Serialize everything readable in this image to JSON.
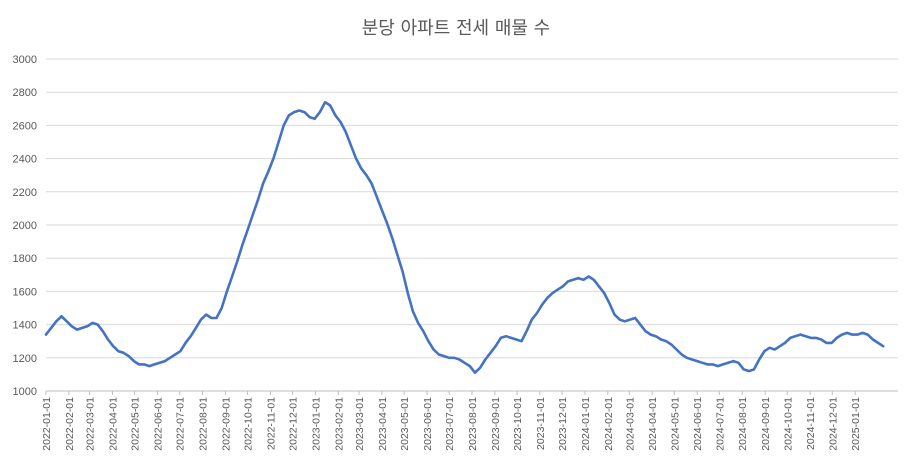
{
  "chart_data": {
    "type": "line",
    "title": "분당 아파트 전세 매물 수",
    "ylim": [
      1000,
      3000
    ],
    "yticks": [
      1000,
      1200,
      1400,
      1600,
      1800,
      2000,
      2200,
      2400,
      2600,
      2800,
      3000
    ],
    "xlim": [
      "2022-01-01",
      "2025-02-28"
    ],
    "grid": "horizontal",
    "legend": "none",
    "color": "#4472C4",
    "xtick_labels": [
      "2022-01-01",
      "2022-02-01",
      "2022-03-01",
      "2022-04-01",
      "2022-05-01",
      "2022-06-01",
      "2022-07-01",
      "2022-08-01",
      "2022-09-01",
      "2022-10-01",
      "2022-11-01",
      "2022-12-01",
      "2023-01-01",
      "2023-02-01",
      "2023-03-01",
      "2023-04-01",
      "2023-05-01",
      "2023-06-01",
      "2023-07-01",
      "2023-08-01",
      "2023-09-01",
      "2023-10-01",
      "2023-11-01",
      "2023-12-01",
      "2024-01-01",
      "2024-02-01",
      "2024-03-01",
      "2024-04-01",
      "2024-05-01",
      "2024-06-01",
      "2024-07-01",
      "2024-08-01",
      "2024-09-01",
      "2024-10-01",
      "2024-11-01",
      "2024-12-01",
      "2025-01-01"
    ],
    "series": [
      {
        "points": [
          [
            "2022-01-01",
            1340
          ],
          [
            "2022-01-08",
            1380
          ],
          [
            "2022-01-15",
            1420
          ],
          [
            "2022-01-22",
            1450
          ],
          [
            "2022-01-29",
            1420
          ],
          [
            "2022-02-05",
            1390
          ],
          [
            "2022-02-12",
            1370
          ],
          [
            "2022-02-19",
            1380
          ],
          [
            "2022-02-26",
            1390
          ],
          [
            "2022-03-05",
            1410
          ],
          [
            "2022-03-12",
            1400
          ],
          [
            "2022-03-19",
            1360
          ],
          [
            "2022-03-26",
            1310
          ],
          [
            "2022-04-02",
            1270
          ],
          [
            "2022-04-09",
            1240
          ],
          [
            "2022-04-16",
            1230
          ],
          [
            "2022-04-23",
            1210
          ],
          [
            "2022-04-30",
            1180
          ],
          [
            "2022-05-07",
            1160
          ],
          [
            "2022-05-14",
            1160
          ],
          [
            "2022-05-21",
            1150
          ],
          [
            "2022-05-28",
            1160
          ],
          [
            "2022-06-04",
            1170
          ],
          [
            "2022-06-11",
            1180
          ],
          [
            "2022-06-18",
            1200
          ],
          [
            "2022-06-25",
            1220
          ],
          [
            "2022-07-02",
            1240
          ],
          [
            "2022-07-09",
            1290
          ],
          [
            "2022-07-16",
            1330
          ],
          [
            "2022-07-23",
            1380
          ],
          [
            "2022-07-30",
            1430
          ],
          [
            "2022-08-06",
            1460
          ],
          [
            "2022-08-13",
            1440
          ],
          [
            "2022-08-20",
            1440
          ],
          [
            "2022-08-27",
            1500
          ],
          [
            "2022-09-03",
            1600
          ],
          [
            "2022-09-10",
            1690
          ],
          [
            "2022-09-17",
            1780
          ],
          [
            "2022-09-24",
            1880
          ],
          [
            "2022-10-01",
            1970
          ],
          [
            "2022-10-08",
            2060
          ],
          [
            "2022-10-15",
            2150
          ],
          [
            "2022-10-22",
            2250
          ],
          [
            "2022-10-29",
            2320
          ],
          [
            "2022-11-05",
            2400
          ],
          [
            "2022-11-12",
            2500
          ],
          [
            "2022-11-19",
            2600
          ],
          [
            "2022-11-26",
            2660
          ],
          [
            "2022-12-03",
            2680
          ],
          [
            "2022-12-10",
            2690
          ],
          [
            "2022-12-17",
            2680
          ],
          [
            "2022-12-24",
            2650
          ],
          [
            "2022-12-31",
            2640
          ],
          [
            "2023-01-07",
            2680
          ],
          [
            "2023-01-14",
            2740
          ],
          [
            "2023-01-21",
            2720
          ],
          [
            "2023-01-28",
            2660
          ],
          [
            "2023-02-04",
            2620
          ],
          [
            "2023-02-11",
            2560
          ],
          [
            "2023-02-18",
            2480
          ],
          [
            "2023-02-25",
            2400
          ],
          [
            "2023-03-04",
            2340
          ],
          [
            "2023-03-11",
            2300
          ],
          [
            "2023-03-18",
            2250
          ],
          [
            "2023-03-25",
            2170
          ],
          [
            "2023-04-01",
            2090
          ],
          [
            "2023-04-08",
            2010
          ],
          [
            "2023-04-15",
            1920
          ],
          [
            "2023-04-22",
            1820
          ],
          [
            "2023-04-29",
            1720
          ],
          [
            "2023-05-06",
            1590
          ],
          [
            "2023-05-13",
            1480
          ],
          [
            "2023-05-20",
            1410
          ],
          [
            "2023-05-27",
            1360
          ],
          [
            "2023-06-03",
            1300
          ],
          [
            "2023-06-10",
            1250
          ],
          [
            "2023-06-17",
            1220
          ],
          [
            "2023-06-24",
            1210
          ],
          [
            "2023-07-01",
            1200
          ],
          [
            "2023-07-08",
            1200
          ],
          [
            "2023-07-15",
            1190
          ],
          [
            "2023-07-22",
            1170
          ],
          [
            "2023-07-29",
            1150
          ],
          [
            "2023-08-05",
            1110
          ],
          [
            "2023-08-12",
            1140
          ],
          [
            "2023-08-19",
            1190
          ],
          [
            "2023-08-26",
            1230
          ],
          [
            "2023-09-02",
            1270
          ],
          [
            "2023-09-09",
            1320
          ],
          [
            "2023-09-16",
            1330
          ],
          [
            "2023-09-23",
            1320
          ],
          [
            "2023-09-30",
            1310
          ],
          [
            "2023-10-07",
            1300
          ],
          [
            "2023-10-14",
            1360
          ],
          [
            "2023-10-21",
            1430
          ],
          [
            "2023-10-28",
            1470
          ],
          [
            "2023-11-04",
            1520
          ],
          [
            "2023-11-11",
            1560
          ],
          [
            "2023-11-18",
            1590
          ],
          [
            "2023-11-25",
            1610
          ],
          [
            "2023-12-02",
            1630
          ],
          [
            "2023-12-09",
            1660
          ],
          [
            "2023-12-16",
            1670
          ],
          [
            "2023-12-23",
            1680
          ],
          [
            "2023-12-30",
            1670
          ],
          [
            "2024-01-06",
            1690
          ],
          [
            "2024-01-13",
            1670
          ],
          [
            "2024-01-20",
            1630
          ],
          [
            "2024-01-27",
            1590
          ],
          [
            "2024-02-03",
            1530
          ],
          [
            "2024-02-10",
            1460
          ],
          [
            "2024-02-17",
            1430
          ],
          [
            "2024-02-24",
            1420
          ],
          [
            "2024-03-02",
            1430
          ],
          [
            "2024-03-09",
            1440
          ],
          [
            "2024-03-16",
            1400
          ],
          [
            "2024-03-23",
            1360
          ],
          [
            "2024-03-30",
            1340
          ],
          [
            "2024-04-06",
            1330
          ],
          [
            "2024-04-13",
            1310
          ],
          [
            "2024-04-20",
            1300
          ],
          [
            "2024-04-27",
            1280
          ],
          [
            "2024-05-04",
            1250
          ],
          [
            "2024-05-11",
            1220
          ],
          [
            "2024-05-18",
            1200
          ],
          [
            "2024-05-25",
            1190
          ],
          [
            "2024-06-01",
            1180
          ],
          [
            "2024-06-08",
            1170
          ],
          [
            "2024-06-15",
            1160
          ],
          [
            "2024-06-22",
            1160
          ],
          [
            "2024-06-29",
            1150
          ],
          [
            "2024-07-06",
            1160
          ],
          [
            "2024-07-13",
            1170
          ],
          [
            "2024-07-20",
            1180
          ],
          [
            "2024-07-27",
            1170
          ],
          [
            "2024-08-03",
            1130
          ],
          [
            "2024-08-10",
            1120
          ],
          [
            "2024-08-17",
            1130
          ],
          [
            "2024-08-24",
            1190
          ],
          [
            "2024-08-31",
            1240
          ],
          [
            "2024-09-07",
            1260
          ],
          [
            "2024-09-14",
            1250
          ],
          [
            "2024-09-21",
            1270
          ],
          [
            "2024-09-28",
            1290
          ],
          [
            "2024-10-05",
            1320
          ],
          [
            "2024-10-12",
            1330
          ],
          [
            "2024-10-19",
            1340
          ],
          [
            "2024-10-26",
            1330
          ],
          [
            "2024-11-02",
            1320
          ],
          [
            "2024-11-09",
            1320
          ],
          [
            "2024-11-16",
            1310
          ],
          [
            "2024-11-23",
            1290
          ],
          [
            "2024-11-30",
            1290
          ],
          [
            "2024-12-07",
            1320
          ],
          [
            "2024-12-14",
            1340
          ],
          [
            "2024-12-21",
            1350
          ],
          [
            "2024-12-28",
            1340
          ],
          [
            "2025-01-04",
            1340
          ],
          [
            "2025-01-11",
            1350
          ],
          [
            "2025-01-18",
            1340
          ],
          [
            "2025-01-25",
            1310
          ],
          [
            "2025-02-01",
            1290
          ],
          [
            "2025-02-08",
            1270
          ]
        ]
      }
    ]
  }
}
